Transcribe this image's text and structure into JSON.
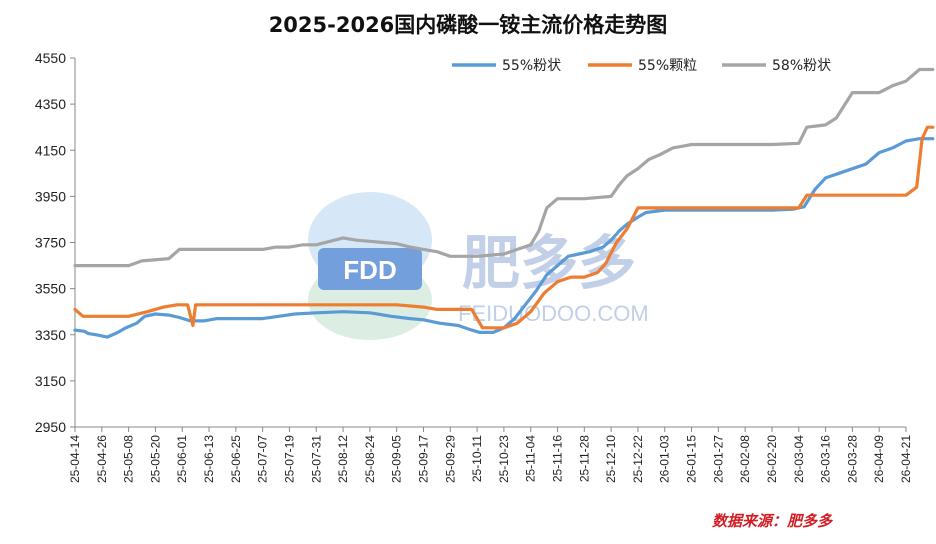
{
  "chart_data": {
    "type": "line",
    "title": "2025-2026国内磷酸一铵主流价格走势图",
    "xlabel": "",
    "ylabel": "",
    "ylim": [
      2950,
      4550
    ],
    "yticks": [
      2950,
      3150,
      3350,
      3550,
      3750,
      3950,
      4150,
      4350,
      4550
    ],
    "xticks": [
      "25-04-14",
      "25-04-26",
      "25-05-08",
      "25-05-20",
      "25-06-01",
      "25-06-13",
      "25-06-25",
      "25-07-07",
      "25-07-19",
      "25-07-31",
      "25-08-12",
      "25-08-24",
      "25-09-05",
      "25-09-17",
      "25-09-29",
      "25-10-11",
      "25-10-23",
      "25-11-04",
      "25-11-16",
      "25-11-28",
      "25-12-10",
      "25-12-22",
      "26-01-03",
      "26-01-15",
      "26-01-27",
      "26-02-08",
      "26-02-20",
      "26-03-04",
      "26-03-16",
      "26-03-28",
      "26-04-09",
      "26-04-21"
    ],
    "legend_position": "top-right",
    "series": [
      {
        "name": "55%粉状",
        "color": "#5b9bd5",
        "points": [
          [
            0,
            3370
          ],
          [
            0.35,
            3365
          ],
          [
            0.5,
            3355
          ],
          [
            0.8,
            3350
          ],
          [
            1.2,
            3340
          ],
          [
            1.6,
            3360
          ],
          [
            1.9,
            3380
          ],
          [
            2.3,
            3400
          ],
          [
            2.6,
            3430
          ],
          [
            3.0,
            3440
          ],
          [
            3.5,
            3435
          ],
          [
            3.9,
            3425
          ],
          [
            4.3,
            3410
          ],
          [
            4.8,
            3410
          ],
          [
            5.3,
            3420
          ],
          [
            6,
            3420
          ],
          [
            7,
            3420
          ],
          [
            7.6,
            3430
          ],
          [
            8.2,
            3440
          ],
          [
            9,
            3445
          ],
          [
            10,
            3450
          ],
          [
            11,
            3445
          ],
          [
            11.8,
            3430
          ],
          [
            12.5,
            3420
          ],
          [
            13,
            3415
          ],
          [
            13.6,
            3400
          ],
          [
            14.3,
            3390
          ],
          [
            14.8,
            3370
          ],
          [
            15.1,
            3360
          ],
          [
            15.6,
            3360
          ],
          [
            16,
            3380
          ],
          [
            16.4,
            3420
          ],
          [
            16.8,
            3480
          ],
          [
            17.2,
            3540
          ],
          [
            17.6,
            3610
          ],
          [
            18,
            3650
          ],
          [
            18.4,
            3690
          ],
          [
            18.8,
            3700
          ],
          [
            19.2,
            3710
          ],
          [
            19.7,
            3730
          ],
          [
            20,
            3760
          ],
          [
            20.3,
            3800
          ],
          [
            20.6,
            3830
          ],
          [
            21,
            3860
          ],
          [
            21.3,
            3880
          ],
          [
            22,
            3890
          ],
          [
            23,
            3890
          ],
          [
            24,
            3890
          ],
          [
            25,
            3890
          ],
          [
            26,
            3890
          ],
          [
            26.8,
            3895
          ],
          [
            27.2,
            3905
          ],
          [
            27.6,
            3980
          ],
          [
            28,
            4030
          ],
          [
            28.5,
            4050
          ],
          [
            29,
            4070
          ],
          [
            29.5,
            4090
          ],
          [
            30,
            4140
          ],
          [
            30.5,
            4160
          ],
          [
            31,
            4190
          ],
          [
            31.5,
            4200
          ],
          [
            32,
            4200
          ]
        ]
      },
      {
        "name": "55%颗粒",
        "color": "#ed7d31",
        "points": [
          [
            0,
            3460
          ],
          [
            0.3,
            3430
          ],
          [
            1,
            3430
          ],
          [
            2,
            3430
          ],
          [
            2.7,
            3450
          ],
          [
            3.3,
            3470
          ],
          [
            3.8,
            3480
          ],
          [
            4.2,
            3480
          ],
          [
            4.4,
            3390
          ],
          [
            4.5,
            3480
          ],
          [
            5,
            3480
          ],
          [
            6,
            3480
          ],
          [
            7,
            3480
          ],
          [
            8,
            3480
          ],
          [
            9,
            3480
          ],
          [
            10,
            3480
          ],
          [
            11,
            3480
          ],
          [
            12,
            3480
          ],
          [
            13,
            3470
          ],
          [
            13.5,
            3460
          ],
          [
            14,
            3460
          ],
          [
            14.8,
            3460
          ],
          [
            15.2,
            3380
          ],
          [
            16,
            3380
          ],
          [
            16.5,
            3400
          ],
          [
            17,
            3450
          ],
          [
            17.5,
            3530
          ],
          [
            18,
            3580
          ],
          [
            18.5,
            3600
          ],
          [
            19,
            3600
          ],
          [
            19.5,
            3620
          ],
          [
            19.8,
            3660
          ],
          [
            20.2,
            3750
          ],
          [
            20.6,
            3810
          ],
          [
            21,
            3900
          ],
          [
            22,
            3900
          ],
          [
            23,
            3900
          ],
          [
            24,
            3900
          ],
          [
            25,
            3900
          ],
          [
            26,
            3900
          ],
          [
            27,
            3900
          ],
          [
            27.3,
            3955
          ],
          [
            28,
            3955
          ],
          [
            29,
            3955
          ],
          [
            30,
            3955
          ],
          [
            31,
            3955
          ],
          [
            31.4,
            3990
          ],
          [
            31.6,
            4200
          ],
          [
            31.8,
            4250
          ],
          [
            32,
            4250
          ]
        ]
      },
      {
        "name": "58%粉状",
        "color": "#a5a5a5",
        "points": [
          [
            0,
            3650
          ],
          [
            1,
            3650
          ],
          [
            2,
            3650
          ],
          [
            2.5,
            3670
          ],
          [
            3.5,
            3680
          ],
          [
            3.9,
            3720
          ],
          [
            5,
            3720
          ],
          [
            6,
            3720
          ],
          [
            7,
            3720
          ],
          [
            7.5,
            3730
          ],
          [
            8,
            3730
          ],
          [
            8.5,
            3740
          ],
          [
            9,
            3740
          ],
          [
            10,
            3770
          ],
          [
            10.5,
            3760
          ],
          [
            11,
            3755
          ],
          [
            11.5,
            3750
          ],
          [
            12,
            3745
          ],
          [
            12.5,
            3730
          ],
          [
            13,
            3720
          ],
          [
            13.5,
            3710
          ],
          [
            14,
            3690
          ],
          [
            15,
            3690
          ],
          [
            16,
            3700
          ],
          [
            16.5,
            3720
          ],
          [
            17,
            3740
          ],
          [
            17.3,
            3800
          ],
          [
            17.6,
            3900
          ],
          [
            18,
            3940
          ],
          [
            19,
            3940
          ],
          [
            20,
            3950
          ],
          [
            20.3,
            4000
          ],
          [
            20.6,
            4040
          ],
          [
            21,
            4070
          ],
          [
            21.4,
            4110
          ],
          [
            21.8,
            4130
          ],
          [
            22.3,
            4160
          ],
          [
            22.8,
            4170
          ],
          [
            23,
            4175
          ],
          [
            24,
            4175
          ],
          [
            25,
            4175
          ],
          [
            26,
            4175
          ],
          [
            27,
            4180
          ],
          [
            27.3,
            4250
          ],
          [
            28,
            4260
          ],
          [
            28.4,
            4290
          ],
          [
            29,
            4400
          ],
          [
            30,
            4400
          ],
          [
            30.5,
            4430
          ],
          [
            31,
            4450
          ],
          [
            31.5,
            4500
          ],
          [
            32,
            4500
          ]
        ]
      }
    ]
  },
  "watermark": {
    "fdd": "FDD",
    "brand": "肥多多",
    "url": "FEIDUODOO.COM"
  },
  "source_note": "数据来源：肥多多"
}
